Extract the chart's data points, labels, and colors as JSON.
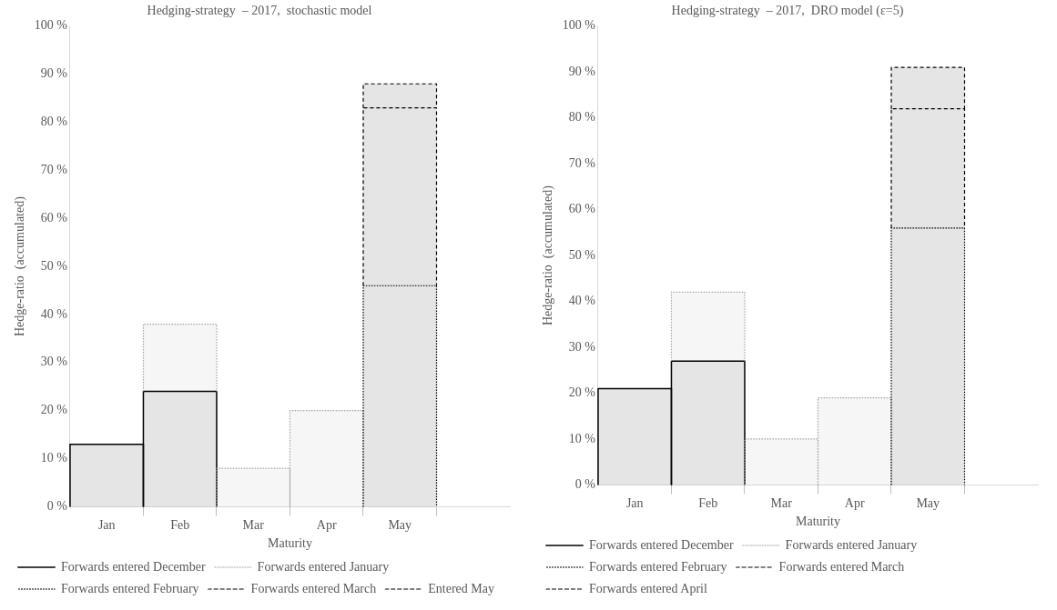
{
  "chart_data": [
    {
      "type": "bar",
      "stacked": true,
      "title": "Hedging-strategy  – 2017,  stochastic model",
      "xlabel": "Maturity",
      "ylabel": "Hedge-ratio  (accumulated)",
      "categories": [
        "Jan",
        "Feb",
        "Mar",
        "Apr",
        "May",
        null
      ],
      "series": [
        {
          "name": "Forwards entered December",
          "color": "#000000",
          "line_style": "solid",
          "values": [
            13,
            24,
            null,
            null,
            null,
            null
          ]
        },
        {
          "name": "Forwards entered January",
          "color": "#a6a6a6",
          "line_style": "dotted",
          "values": [
            null,
            14,
            8,
            20,
            null,
            null
          ]
        },
        {
          "name": "Forwards entered February",
          "color": "#000000",
          "line_style": "dotted",
          "values": [
            null,
            null,
            null,
            null,
            46,
            null
          ]
        },
        {
          "name": "Forwards entered March",
          "color": "#000000",
          "line_style": "dashed",
          "values": [
            null,
            null,
            null,
            null,
            37,
            null
          ]
        },
        {
          "name": "Entered May",
          "color": "#000000",
          "line_style": "dashed",
          "values": [
            null,
            null,
            null,
            null,
            5,
            null
          ]
        }
      ],
      "ylim": [
        0,
        100
      ],
      "yticks": [
        {
          "value": 0,
          "label": "0 %"
        },
        {
          "value": 10,
          "label": "10 %"
        },
        {
          "value": 20,
          "label": "20 %"
        },
        {
          "value": 30,
          "label": "30 %"
        },
        {
          "value": 40,
          "label": "40 %"
        },
        {
          "value": 50,
          "label": "50 %"
        },
        {
          "value": 60,
          "label": "60 %"
        },
        {
          "value": 70,
          "label": "70 %"
        },
        {
          "value": 80,
          "label": "80 %"
        },
        {
          "value": 90,
          "label": "90 %"
        },
        {
          "value": 100,
          "label": "100 %"
        }
      ],
      "grid": false,
      "legend": "bottom"
    },
    {
      "type": "bar",
      "stacked": true,
      "title": "Hedging-strategy  – 2017,  DRO model (ε=5)",
      "xlabel": "Maturity",
      "ylabel": "Hedge-ratio  (accumulated)",
      "categories": [
        "Jan",
        "Feb",
        "Mar",
        "Apr",
        "May",
        null
      ],
      "series": [
        {
          "name": "Forwards entered December",
          "color": "#000000",
          "line_style": "solid",
          "values": [
            21,
            27,
            null,
            null,
            null,
            null
          ]
        },
        {
          "name": "Forwards entered January",
          "color": "#a6a6a6",
          "line_style": "dotted",
          "values": [
            null,
            15,
            10,
            19,
            null,
            null
          ]
        },
        {
          "name": "Forwards entered February",
          "color": "#000000",
          "line_style": "dotted",
          "values": [
            null,
            null,
            null,
            null,
            56,
            null
          ]
        },
        {
          "name": "Forwards entered March",
          "color": "#000000",
          "line_style": "dashed",
          "values": [
            null,
            null,
            null,
            null,
            26,
            null
          ]
        },
        {
          "name": "Forwards entered April",
          "color": "#000000",
          "line_style": "dashed",
          "values": [
            null,
            null,
            null,
            null,
            9,
            null
          ]
        }
      ],
      "ylim": [
        0,
        100
      ],
      "yticks": [
        {
          "value": 0,
          "label": "0 %"
        },
        {
          "value": 10,
          "label": "10 %"
        },
        {
          "value": 20,
          "label": "20 %"
        },
        {
          "value": 30,
          "label": "30 %"
        },
        {
          "value": 40,
          "label": "40 %"
        },
        {
          "value": 50,
          "label": "50 %"
        },
        {
          "value": 60,
          "label": "60 %"
        },
        {
          "value": 70,
          "label": "70 %"
        },
        {
          "value": 80,
          "label": "80 %"
        },
        {
          "value": 90,
          "label": "90 %"
        },
        {
          "value": 100,
          "label": "100 %"
        }
      ],
      "grid": false,
      "legend": "bottom"
    }
  ]
}
